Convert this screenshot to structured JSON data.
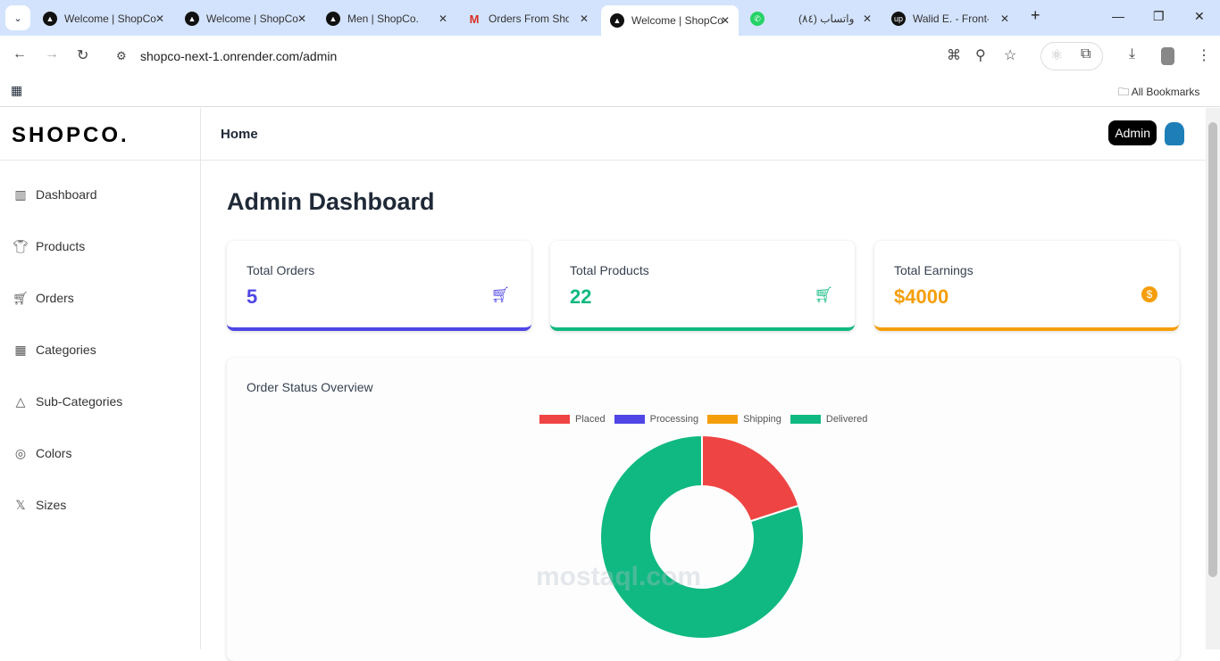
{
  "browser": {
    "tabs": [
      {
        "title": "Welcome | ShopCo"
      },
      {
        "title": "Welcome | ShopCo"
      },
      {
        "title": "Men | ShopCo."
      },
      {
        "title": "Orders From ShopCo"
      },
      {
        "title": "Welcome | ShopCo",
        "active": true
      },
      {
        "title": "(٨٤) واتساب"
      },
      {
        "title": "Walid E. - Front-end"
      }
    ],
    "url": "shopco-next-1.onrender.com/admin",
    "bookmarks_label": "All Bookmarks"
  },
  "app": {
    "logo": "SHOPCO.",
    "breadcrumb": "Home",
    "admin_label": "Admin",
    "sidebar": [
      {
        "label": "Dashboard",
        "icon": "bar-chart-icon"
      },
      {
        "label": "Products",
        "icon": "shirt-icon"
      },
      {
        "label": "Orders",
        "icon": "cart-icon"
      },
      {
        "label": "Categories",
        "icon": "grid-icon"
      },
      {
        "label": "Sub-Categories",
        "icon": "shapes-icon"
      },
      {
        "label": "Colors",
        "icon": "palette-icon"
      },
      {
        "label": "Sizes",
        "icon": "x-icon"
      }
    ],
    "title": "Admin Dashboard",
    "cards": [
      {
        "label": "Total Orders",
        "value": "5",
        "color": "#4f46e5"
      },
      {
        "label": "Total Products",
        "value": "22",
        "color": "#10b981"
      },
      {
        "label": "Total Earnings",
        "value": "$4000",
        "color": "#f59e0b"
      }
    ],
    "chart_title": "Order Status Overview"
  },
  "chart_data": {
    "type": "doughnut",
    "categories": [
      "Placed",
      "Processing",
      "Shipping",
      "Delivered"
    ],
    "values": [
      1,
      0,
      0,
      4
    ],
    "colors": [
      "#ef4444",
      "#4f46e5",
      "#f59e0b",
      "#10b981"
    ],
    "legend": "top"
  },
  "watermark": "mostaql.com"
}
